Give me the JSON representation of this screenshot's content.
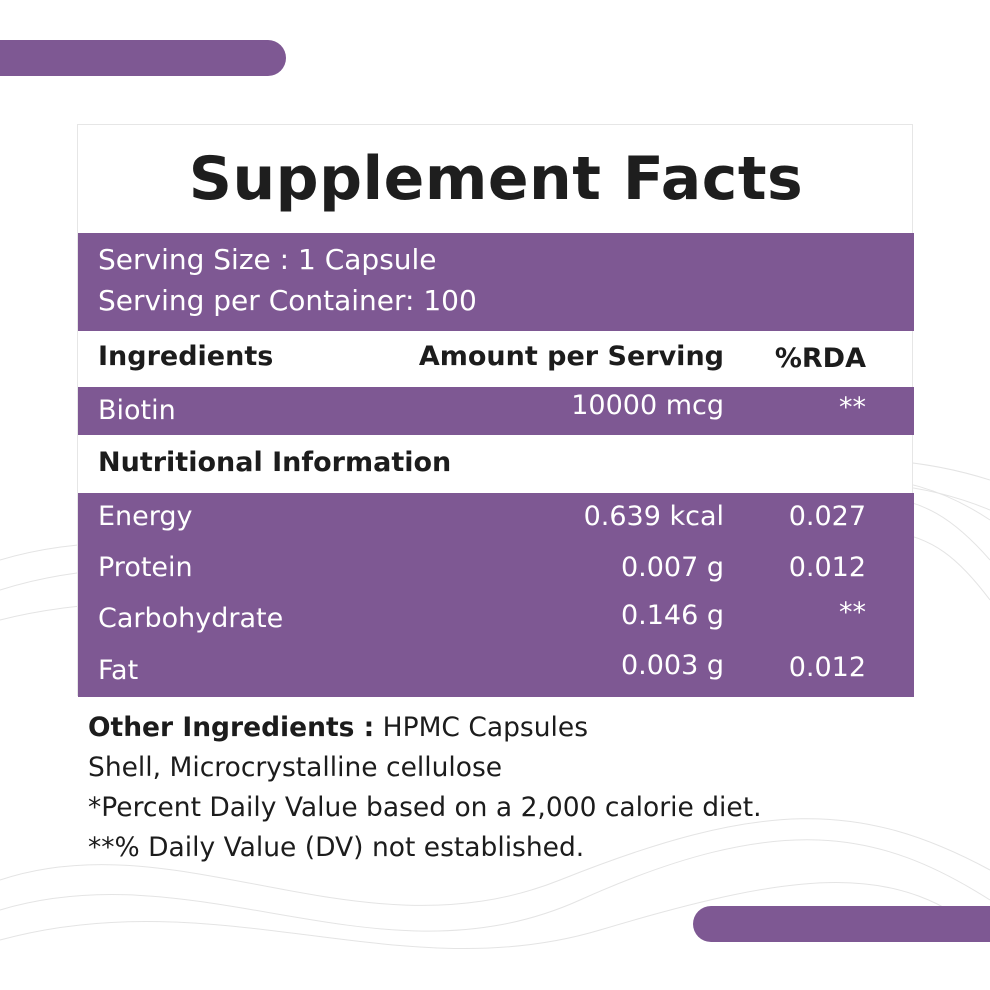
{
  "title": "Supplement Facts",
  "serving": {
    "size": "Serving Size : 1 Capsule",
    "per_container": "Serving per Container: 100"
  },
  "columns": {
    "ingredients": "Ingredients",
    "amount": "Amount per Serving",
    "rda": "%RDA"
  },
  "ingredients": [
    {
      "name": "Biotin",
      "amount": "10000 mcg",
      "rda": "**"
    }
  ],
  "nutrition_header": "Nutritional Information",
  "nutrition": [
    {
      "name": "Energy",
      "amount": "0.639 kcal",
      "rda": "0.027"
    },
    {
      "name": "Protein",
      "amount": "0.007 g",
      "rda": "0.012"
    },
    {
      "name": "Carbohydrate",
      "amount": "0.146 g",
      "rda": "**"
    },
    {
      "name": "Fat",
      "amount": "0.003 g",
      "rda": "0.012"
    }
  ],
  "footer": {
    "other_label": "Other Ingredients :",
    "other_value_1": " HPMC Capsules",
    "other_value_2": "Shell, Microcrystalline cellulose",
    "note_1": "*Percent Daily Value  based on a 2,000 calorie diet.",
    "note_2": "**% Daily Value (DV) not established."
  },
  "colors": {
    "accent": "#7e5893",
    "text": "#1c1c1c",
    "background": "#ffffff"
  }
}
